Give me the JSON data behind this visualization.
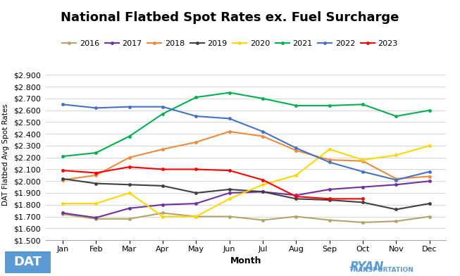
{
  "title": "National Flatbed Spot Rates ex. Fuel Surcharge",
  "xlabel": "Month",
  "ylabel": "DAT Flatbed Avg Spot Rates",
  "months": [
    "Jan",
    "Feb",
    "Mar",
    "Apr",
    "May",
    "Jun",
    "Jul",
    "Aug",
    "Sep",
    "Oct",
    "Nov",
    "Dec"
  ],
  "series": {
    "2016": {
      "color": "#b5a469",
      "values": [
        1.72,
        1.68,
        1.68,
        1.73,
        1.7,
        1.7,
        1.67,
        1.7,
        1.67,
        1.65,
        1.66,
        1.7
      ]
    },
    "2017": {
      "color": "#7030a0",
      "values": [
        1.73,
        1.69,
        1.77,
        1.8,
        1.81,
        1.9,
        1.91,
        1.88,
        1.93,
        1.95,
        1.97,
        2.0
      ]
    },
    "2018": {
      "color": "#ed8b3a",
      "values": [
        2.01,
        2.05,
        2.2,
        2.27,
        2.33,
        2.42,
        2.38,
        2.26,
        2.18,
        2.17,
        2.02,
        2.04
      ]
    },
    "2019": {
      "color": "#404040",
      "values": [
        2.02,
        1.98,
        1.97,
        1.96,
        1.9,
        1.93,
        1.91,
        1.85,
        1.84,
        1.82,
        1.76,
        1.81
      ]
    },
    "2020": {
      "color": "#ffd700",
      "values": [
        1.81,
        1.81,
        1.9,
        1.7,
        1.7,
        1.85,
        1.97,
        2.05,
        2.27,
        2.18,
        2.22,
        2.3
      ]
    },
    "2021": {
      "color": "#00b050",
      "values": [
        2.21,
        2.24,
        2.38,
        2.57,
        2.71,
        2.75,
        2.7,
        2.64,
        2.64,
        2.65,
        2.55,
        2.6
      ]
    },
    "2022": {
      "color": "#4472c4",
      "values": [
        2.65,
        2.62,
        2.63,
        2.63,
        2.55,
        2.53,
        2.42,
        2.28,
        2.16,
        2.08,
        2.01,
        2.08
      ]
    },
    "2023": {
      "color": "#ff0000",
      "values": [
        2.09,
        2.07,
        2.12,
        2.1,
        2.1,
        2.09,
        2.01,
        1.87,
        1.85,
        1.85,
        null,
        null
      ]
    }
  },
  "ylim": [
    1.5,
    2.95
  ],
  "yticks": [
    1.5,
    1.6,
    1.7,
    1.8,
    1.9,
    2.0,
    2.1,
    2.2,
    2.3,
    2.4,
    2.5,
    2.6,
    2.7,
    2.8,
    2.9
  ],
  "background_color": "#ffffff",
  "grid_color": "#d0d0d0",
  "title_fontsize": 13,
  "legend_fontsize": 8,
  "axis_label_fontsize": 9,
  "tick_fontsize": 8
}
